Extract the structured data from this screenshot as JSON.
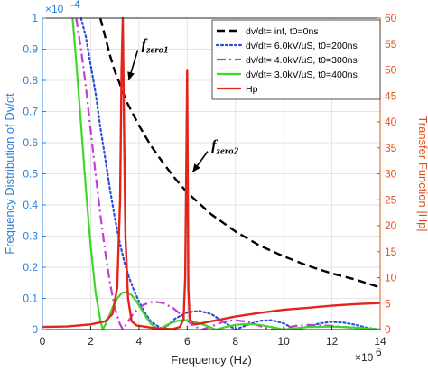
{
  "chart_data": {
    "type": "line",
    "xlabel": "Frequency (Hz)",
    "x_exponent": "×10",
    "x_exponent_power": "6",
    "y_left_label": "Frequency Distribution of Dv/dt",
    "y_left_exponent": "×10",
    "y_left_exponent_power": "-4",
    "y_right_label": "Transfer Function |Hp|",
    "x_range": [
      0,
      14
    ],
    "y_left_range": [
      0,
      1
    ],
    "y_right_range": [
      0,
      60
    ],
    "x_ticks": [
      "0",
      "2",
      "4",
      "6",
      "8",
      "10",
      "12",
      "14"
    ],
    "y_left_ticks": [
      "0",
      "0.1",
      "0.2",
      "0.3",
      "0.4",
      "0.5",
      "0.6",
      "0.7",
      "0.8",
      "0.9",
      "1"
    ],
    "y_right_ticks": [
      "0",
      "5",
      "10",
      "15",
      "20",
      "25",
      "30",
      "35",
      "40",
      "45",
      "50",
      "55",
      "60"
    ],
    "grid": true,
    "legend_position": "top-right",
    "colors": {
      "left_axis": "#2c7fd6",
      "right_axis": "#e1501b",
      "inf": "#000000",
      "s6": "#2b4fd8",
      "s4": "#c13ed0",
      "s3": "#3fd62b",
      "hp": "#e3241b"
    },
    "series": [
      {
        "name": "dv/dt= inf, t0=0ns",
        "style": "dashed",
        "color": "#000000",
        "axis": "left",
        "x": [
          2.4,
          2.6,
          2.8,
          3.0,
          3.2,
          3.5,
          4.0,
          4.5,
          5.0,
          5.5,
          6.0,
          7.0,
          8.0,
          9.0,
          10.0,
          11.0,
          12.0,
          13.0,
          14.0
        ],
        "y": [
          1.0,
          0.94,
          0.88,
          0.83,
          0.79,
          0.73,
          0.655,
          0.59,
          0.535,
          0.485,
          0.44,
          0.37,
          0.315,
          0.27,
          0.235,
          0.205,
          0.18,
          0.16,
          0.135
        ]
      },
      {
        "name": "dv/dt= 6.0kV/uS, t0=200ns",
        "style": "dotted",
        "color": "#2b4fd8",
        "axis": "left",
        "x": [
          1.6,
          1.8,
          2.0,
          2.2,
          2.4,
          2.6,
          2.8,
          3.0,
          3.2,
          3.4,
          3.6,
          3.8,
          4.0,
          4.2,
          4.5,
          5.0,
          5.5,
          6.0,
          6.5,
          7.0,
          7.5,
          8.0,
          8.5,
          9.0,
          9.5,
          10.0,
          10.5,
          11.0,
          11.5,
          12.0,
          12.5,
          13.0,
          13.5,
          14.0
        ],
        "y": [
          1.0,
          0.94,
          0.85,
          0.76,
          0.65,
          0.55,
          0.45,
          0.36,
          0.28,
          0.215,
          0.165,
          0.125,
          0.09,
          0.06,
          0.025,
          0.0,
          0.035,
          0.055,
          0.06,
          0.05,
          0.025,
          0.0,
          0.015,
          0.028,
          0.03,
          0.02,
          0.0,
          0.01,
          0.02,
          0.025,
          0.022,
          0.015,
          0.005,
          0.0
        ]
      },
      {
        "name": "dv/dt= 4.0kV/uS, t0=300ns",
        "style": "dashdot",
        "color": "#c13ed0",
        "axis": "left",
        "x": [
          1.4,
          1.6,
          1.8,
          2.0,
          2.2,
          2.4,
          2.6,
          2.8,
          3.0,
          3.2,
          3.33,
          3.5,
          3.8,
          4.2,
          4.6,
          5.0,
          5.4,
          5.8,
          6.2,
          6.6,
          7.0,
          7.5,
          8.0,
          8.5,
          9.0,
          9.5,
          10.0,
          10.5,
          11.0,
          12.0,
          13.0,
          14.0
        ],
        "y": [
          1.0,
          0.9,
          0.78,
          0.64,
          0.5,
          0.37,
          0.25,
          0.15,
          0.07,
          0.02,
          0.0,
          0.02,
          0.055,
          0.08,
          0.09,
          0.085,
          0.07,
          0.045,
          0.015,
          0.0,
          0.01,
          0.025,
          0.03,
          0.025,
          0.012,
          0.0,
          0.005,
          0.012,
          0.015,
          0.012,
          0.005,
          0.0
        ]
      },
      {
        "name": "dv/dt= 3.0kV/uS, t0=400ns",
        "style": "solid",
        "color": "#3fd62b",
        "axis": "left",
        "x": [
          1.25,
          1.4,
          1.6,
          1.8,
          2.0,
          2.2,
          2.4,
          2.5,
          2.7,
          2.9,
          3.1,
          3.3,
          3.5,
          3.7,
          3.9,
          4.1,
          4.3,
          4.5,
          4.8,
          5.0,
          5.3,
          5.6,
          5.9,
          6.3,
          6.7,
          7.2,
          7.6,
          8.0,
          8.5,
          9.0,
          9.5,
          10.0,
          11.0,
          12.0,
          13.0,
          14.0
        ],
        "y": [
          1.0,
          0.86,
          0.66,
          0.45,
          0.27,
          0.12,
          0.03,
          0.0,
          0.03,
          0.07,
          0.1,
          0.118,
          0.12,
          0.11,
          0.09,
          0.065,
          0.04,
          0.018,
          0.0,
          0.008,
          0.02,
          0.028,
          0.03,
          0.025,
          0.015,
          0.0,
          0.008,
          0.015,
          0.018,
          0.015,
          0.008,
          0.0,
          0.008,
          0.01,
          0.006,
          0.0
        ]
      },
      {
        "name": "Hp",
        "style": "solid",
        "color": "#e3241b",
        "axis": "right",
        "x": [
          0.0,
          1.0,
          2.0,
          2.6,
          2.9,
          3.1,
          3.22,
          3.28,
          3.33,
          3.38,
          3.44,
          3.55,
          3.7,
          3.9,
          4.2,
          4.6,
          5.0,
          5.4,
          5.7,
          5.85,
          5.92,
          5.97,
          6.0,
          6.05,
          6.1,
          6.3,
          6.6,
          7.0,
          8.0,
          9.0,
          10.0,
          11.0,
          12.0,
          13.0,
          14.0
        ],
        "y": [
          0.5,
          0.6,
          1.0,
          1.6,
          3.0,
          8.0,
          25.0,
          50.0,
          60.0,
          40.0,
          18.0,
          6.0,
          1.6,
          0.8,
          0.6,
          0.3,
          0.15,
          0.1,
          0.5,
          2.0,
          10.0,
          35.0,
          50.0,
          8.0,
          2.0,
          1.0,
          1.2,
          1.6,
          2.5,
          3.2,
          3.8,
          4.2,
          4.6,
          4.9,
          5.1
        ]
      }
    ],
    "annotations": [
      {
        "text": "f",
        "sub": "zero1",
        "x": 4.1,
        "y": 0.9,
        "arrow_to_x": 3.35,
        "arrow_to_y": 0.8
      },
      {
        "text": "f",
        "sub": "zero2",
        "x": 7.0,
        "y": 0.575,
        "arrow_to_x": 6.0,
        "arrow_to_y": 0.505
      }
    ]
  }
}
